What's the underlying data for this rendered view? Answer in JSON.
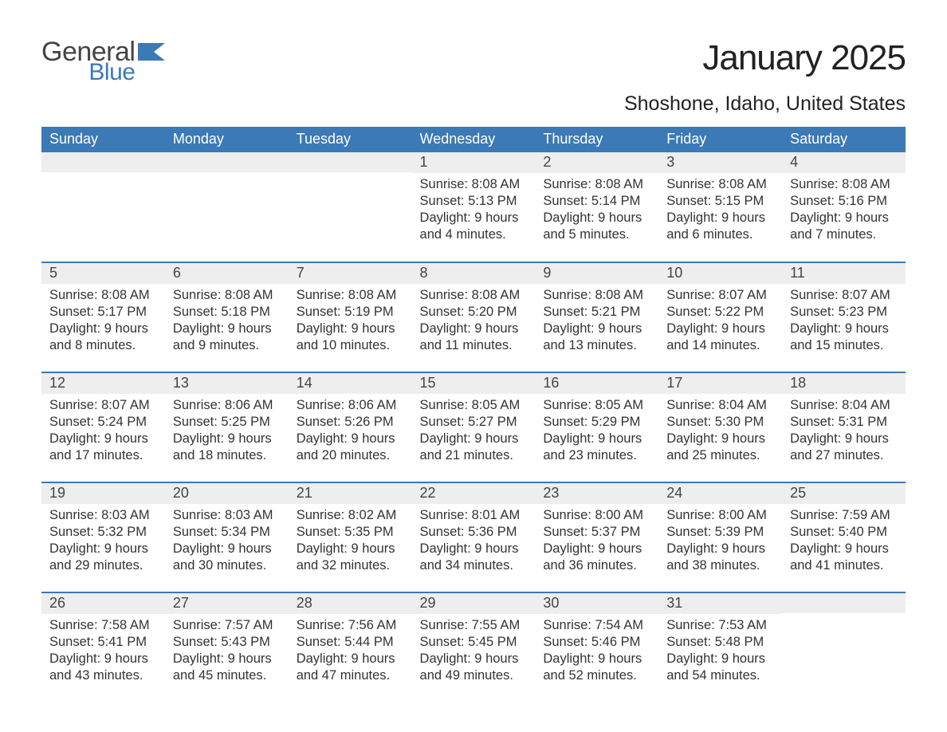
{
  "logo": {
    "text1": "General",
    "text2": "Blue",
    "flag_color": "#3b79b7"
  },
  "title": "January 2025",
  "location": "Shoshone, Idaho, United States",
  "colors": {
    "header_bg": "#3b79b7",
    "header_text": "#ffffff",
    "daynum_bg": "#eeeeee",
    "row_divider": "#3b79b7",
    "body_text": "#333333"
  },
  "day_names": [
    "Sunday",
    "Monday",
    "Tuesday",
    "Wednesday",
    "Thursday",
    "Friday",
    "Saturday"
  ],
  "weeks": [
    [
      null,
      null,
      null,
      {
        "n": "1",
        "sr": "8:08 AM",
        "ss": "5:13 PM",
        "dl": "9 hours and 4 minutes."
      },
      {
        "n": "2",
        "sr": "8:08 AM",
        "ss": "5:14 PM",
        "dl": "9 hours and 5 minutes."
      },
      {
        "n": "3",
        "sr": "8:08 AM",
        "ss": "5:15 PM",
        "dl": "9 hours and 6 minutes."
      },
      {
        "n": "4",
        "sr": "8:08 AM",
        "ss": "5:16 PM",
        "dl": "9 hours and 7 minutes."
      }
    ],
    [
      {
        "n": "5",
        "sr": "8:08 AM",
        "ss": "5:17 PM",
        "dl": "9 hours and 8 minutes."
      },
      {
        "n": "6",
        "sr": "8:08 AM",
        "ss": "5:18 PM",
        "dl": "9 hours and 9 minutes."
      },
      {
        "n": "7",
        "sr": "8:08 AM",
        "ss": "5:19 PM",
        "dl": "9 hours and 10 minutes."
      },
      {
        "n": "8",
        "sr": "8:08 AM",
        "ss": "5:20 PM",
        "dl": "9 hours and 11 minutes."
      },
      {
        "n": "9",
        "sr": "8:08 AM",
        "ss": "5:21 PM",
        "dl": "9 hours and 13 minutes."
      },
      {
        "n": "10",
        "sr": "8:07 AM",
        "ss": "5:22 PM",
        "dl": "9 hours and 14 minutes."
      },
      {
        "n": "11",
        "sr": "8:07 AM",
        "ss": "5:23 PM",
        "dl": "9 hours and 15 minutes."
      }
    ],
    [
      {
        "n": "12",
        "sr": "8:07 AM",
        "ss": "5:24 PM",
        "dl": "9 hours and 17 minutes."
      },
      {
        "n": "13",
        "sr": "8:06 AM",
        "ss": "5:25 PM",
        "dl": "9 hours and 18 minutes."
      },
      {
        "n": "14",
        "sr": "8:06 AM",
        "ss": "5:26 PM",
        "dl": "9 hours and 20 minutes."
      },
      {
        "n": "15",
        "sr": "8:05 AM",
        "ss": "5:27 PM",
        "dl": "9 hours and 21 minutes."
      },
      {
        "n": "16",
        "sr": "8:05 AM",
        "ss": "5:29 PM",
        "dl": "9 hours and 23 minutes."
      },
      {
        "n": "17",
        "sr": "8:04 AM",
        "ss": "5:30 PM",
        "dl": "9 hours and 25 minutes."
      },
      {
        "n": "18",
        "sr": "8:04 AM",
        "ss": "5:31 PM",
        "dl": "9 hours and 27 minutes."
      }
    ],
    [
      {
        "n": "19",
        "sr": "8:03 AM",
        "ss": "5:32 PM",
        "dl": "9 hours and 29 minutes."
      },
      {
        "n": "20",
        "sr": "8:03 AM",
        "ss": "5:34 PM",
        "dl": "9 hours and 30 minutes."
      },
      {
        "n": "21",
        "sr": "8:02 AM",
        "ss": "5:35 PM",
        "dl": "9 hours and 32 minutes."
      },
      {
        "n": "22",
        "sr": "8:01 AM",
        "ss": "5:36 PM",
        "dl": "9 hours and 34 minutes."
      },
      {
        "n": "23",
        "sr": "8:00 AM",
        "ss": "5:37 PM",
        "dl": "9 hours and 36 minutes."
      },
      {
        "n": "24",
        "sr": "8:00 AM",
        "ss": "5:39 PM",
        "dl": "9 hours and 38 minutes."
      },
      {
        "n": "25",
        "sr": "7:59 AM",
        "ss": "5:40 PM",
        "dl": "9 hours and 41 minutes."
      }
    ],
    [
      {
        "n": "26",
        "sr": "7:58 AM",
        "ss": "5:41 PM",
        "dl": "9 hours and 43 minutes."
      },
      {
        "n": "27",
        "sr": "7:57 AM",
        "ss": "5:43 PM",
        "dl": "9 hours and 45 minutes."
      },
      {
        "n": "28",
        "sr": "7:56 AM",
        "ss": "5:44 PM",
        "dl": "9 hours and 47 minutes."
      },
      {
        "n": "29",
        "sr": "7:55 AM",
        "ss": "5:45 PM",
        "dl": "9 hours and 49 minutes."
      },
      {
        "n": "30",
        "sr": "7:54 AM",
        "ss": "5:46 PM",
        "dl": "9 hours and 52 minutes."
      },
      {
        "n": "31",
        "sr": "7:53 AM",
        "ss": "5:48 PM",
        "dl": "9 hours and 54 minutes."
      },
      null
    ]
  ],
  "labels": {
    "sunrise": "Sunrise: ",
    "sunset": "Sunset: ",
    "daylight": "Daylight: "
  }
}
